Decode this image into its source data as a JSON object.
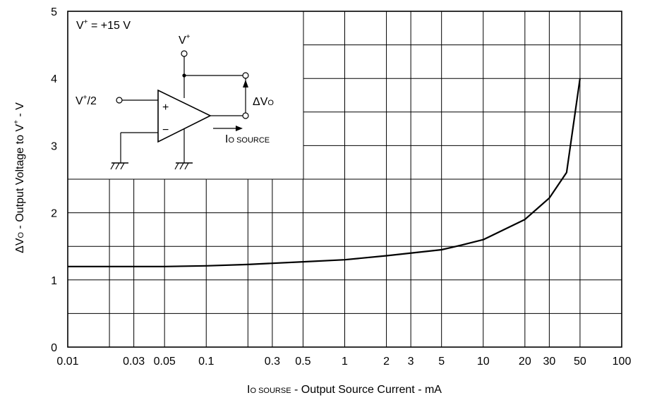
{
  "chart_data": {
    "type": "line",
    "x_scale": "log",
    "xlim": [
      0.01,
      100
    ],
    "ylim": [
      0,
      5
    ],
    "grid": true,
    "xlabel_main": "I",
    "xlabel_sub": "O SOURSE",
    "xlabel_rest": " - Output Source Current - mA",
    "ylabel_prefix": "ΔV",
    "ylabel_sub": "O",
    "ylabel_rest": " - Output Voltage to V",
    "ylabel_sup": "+",
    "ylabel_tail": " - V",
    "x_ticks": [
      {
        "value": 0.01,
        "label": "0.01"
      },
      {
        "value": 0.03,
        "label": "0.03"
      },
      {
        "value": 0.05,
        "label": "0.05"
      },
      {
        "value": 0.1,
        "label": "0.1"
      },
      {
        "value": 0.3,
        "label": "0.3"
      },
      {
        "value": 0.5,
        "label": "0.5"
      },
      {
        "value": 1,
        "label": "1"
      },
      {
        "value": 2,
        "label": "2"
      },
      {
        "value": 3,
        "label": "3"
      },
      {
        "value": 5,
        "label": "5"
      },
      {
        "value": 10,
        "label": "10"
      },
      {
        "value": 20,
        "label": "20"
      },
      {
        "value": 30,
        "label": "30"
      },
      {
        "value": 50,
        "label": "50"
      },
      {
        "value": 100,
        "label": "100"
      }
    ],
    "y_ticks": [
      {
        "value": 0,
        "label": "0"
      },
      {
        "value": 1,
        "label": "1"
      },
      {
        "value": 2,
        "label": "2"
      },
      {
        "value": 3,
        "label": "3"
      },
      {
        "value": 4,
        "label": "4"
      },
      {
        "value": 5,
        "label": "5"
      }
    ],
    "x_grid": [
      0.02,
      0.03,
      0.05,
      0.1,
      0.2,
      0.3,
      0.5,
      1,
      2,
      3,
      5,
      10,
      20,
      30,
      50
    ],
    "y_grid": [
      0.5,
      1,
      1.5,
      2,
      2.5,
      3,
      3.5,
      4,
      4.5
    ],
    "series": [
      {
        "x": [
          0.01,
          0.05,
          0.1,
          0.2,
          0.5,
          1,
          2,
          5,
          7,
          10,
          20,
          30,
          40,
          50
        ],
        "y": [
          1.2,
          1.2,
          1.21,
          1.23,
          1.27,
          1.3,
          1.36,
          1.45,
          1.52,
          1.6,
          1.9,
          2.22,
          2.6,
          4.0
        ]
      }
    ]
  },
  "inset": {
    "supply_label": "V",
    "supply_sup": "+",
    "supply_value": " = +15 V",
    "vplus_label": "V",
    "vplus_sup": "+",
    "input_label": "V",
    "input_sup": "+",
    "input_rest": "/2",
    "plus_sign": "+",
    "minus_sign": "−",
    "delta_label": "ΔV",
    "delta_sub": "O",
    "current_label": "I",
    "current_sub": "O SOURCE"
  }
}
